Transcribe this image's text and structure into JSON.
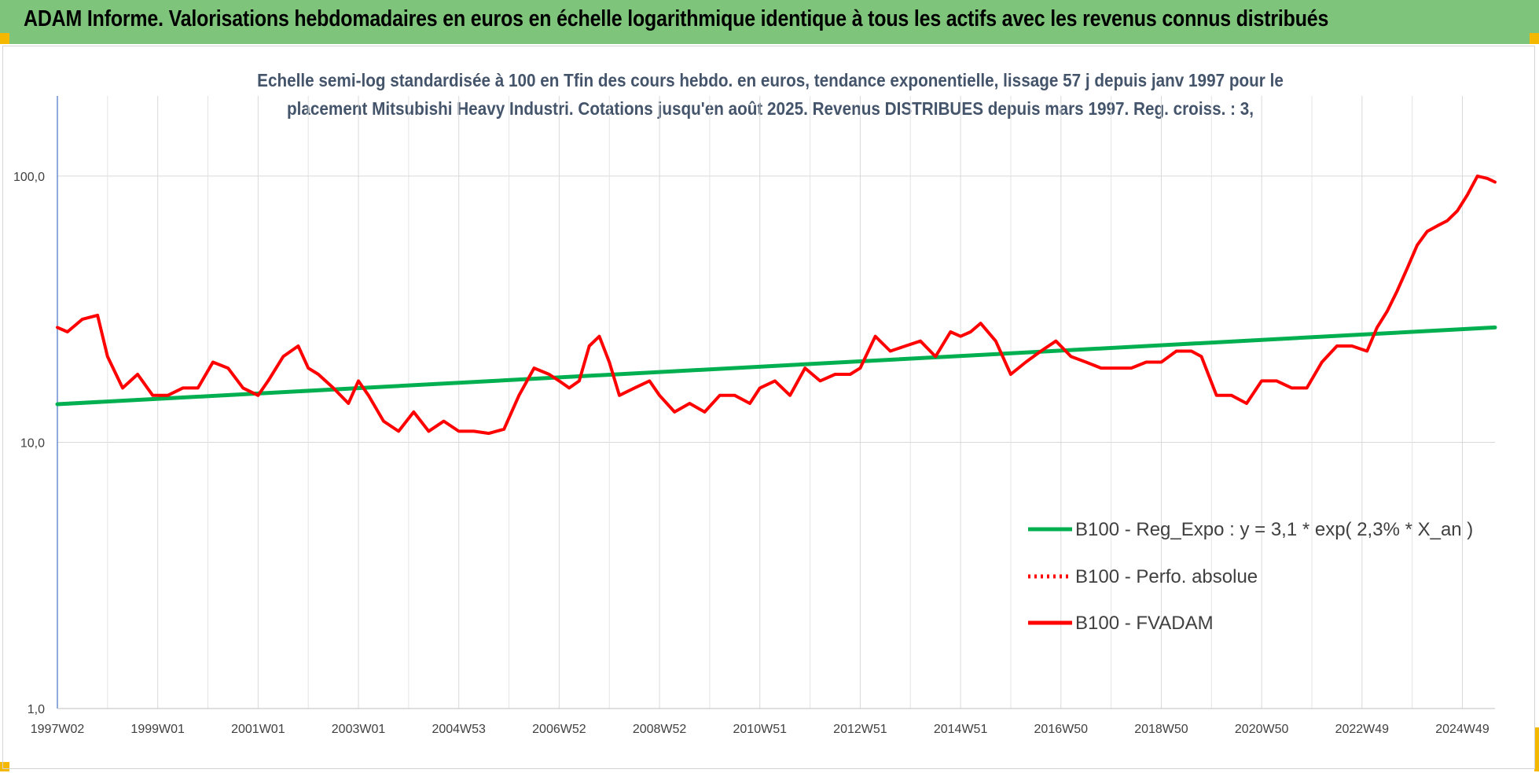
{
  "banner": {
    "title": "ADAM Informe. Valorisations hebdomadaires en euros en échelle logarithmique identique à tous les actifs avec les revenus connus distribués",
    "color": "#7ec47a"
  },
  "chart_data": {
    "type": "line",
    "subtitle_line1": "Echelle semi-log standardisée à 100 en Tfin des cours hebdo. en euros, tendance exponentielle, lissage 57 j depuis janv 1997 pour le",
    "subtitle_line2": "placement Mitsubishi Heavy Industri. Cotations jusqu'en août 2025. Revenus DISTRIBUES depuis mars 1997. Reg. croiss. : 3,",
    "y_scale": "log",
    "ylim": [
      1,
      200
    ],
    "y_ticks": [
      1,
      10,
      100
    ],
    "y_tick_labels": [
      "1,0",
      "10,0",
      "100,0"
    ],
    "x_range": [
      1997.0,
      2025.65
    ],
    "x_ticks": [
      1997.0,
      1999.0,
      2001.0,
      2003.0,
      2005.0,
      2007.0,
      2009.0,
      2011.0,
      2013.0,
      2015.0,
      2017.0,
      2019.0,
      2021.0,
      2023.0,
      2025.0
    ],
    "x_tick_labels": [
      "1997W02",
      "1999W01",
      "2001W01",
      "2003W01",
      "2004W53",
      "2006W52",
      "2008W52",
      "2010W51",
      "2012W51",
      "2014W51",
      "2016W50",
      "2018W50",
      "2020W50",
      "2022W49",
      "2024W49"
    ],
    "grid": true,
    "legend_position": "right",
    "series": [
      {
        "name": "B100 - Reg_Expo : y = 3,1 * exp( 2,3% *  X_an )",
        "color": "#00b050",
        "style": "solid",
        "x": [
          1997.0,
          2025.65
        ],
        "y": [
          13.9,
          27.0
        ]
      },
      {
        "name": "B100 - Perfo. absolue",
        "color": "#ff0000",
        "style": "dotted",
        "x": [],
        "y": []
      },
      {
        "name": "B100 - FVADAM",
        "color": "#ff0000",
        "style": "solid",
        "x": [
          1997.0,
          1997.2,
          1997.5,
          1997.8,
          1998.0,
          1998.3,
          1998.6,
          1998.9,
          1999.2,
          1999.5,
          1999.8,
          2000.1,
          2000.4,
          2000.7,
          2001.0,
          2001.2,
          2001.5,
          2001.8,
          2002.0,
          2002.2,
          2002.5,
          2002.8,
          2003.0,
          2003.2,
          2003.5,
          2003.8,
          2004.1,
          2004.4,
          2004.7,
          2005.0,
          2005.3,
          2005.6,
          2005.9,
          2006.2,
          2006.5,
          2006.8,
          2007.0,
          2007.2,
          2007.4,
          2007.6,
          2007.8,
          2008.0,
          2008.2,
          2008.5,
          2008.8,
          2009.0,
          2009.3,
          2009.6,
          2009.9,
          2010.2,
          2010.5,
          2010.8,
          2011.0,
          2011.3,
          2011.6,
          2011.9,
          2012.2,
          2012.5,
          2012.8,
          2013.0,
          2013.3,
          2013.6,
          2013.9,
          2014.2,
          2014.5,
          2014.8,
          2015.0,
          2015.2,
          2015.4,
          2015.7,
          2016.0,
          2016.3,
          2016.6,
          2016.9,
          2017.2,
          2017.5,
          2017.8,
          2018.1,
          2018.4,
          2018.7,
          2019.0,
          2019.3,
          2019.6,
          2019.8,
          2020.1,
          2020.4,
          2020.7,
          2021.0,
          2021.3,
          2021.6,
          2021.9,
          2022.2,
          2022.5,
          2022.8,
          2023.1,
          2023.3,
          2023.5,
          2023.7,
          2023.9,
          2024.1,
          2024.3,
          2024.5,
          2024.7,
          2024.9,
          2025.1,
          2025.3,
          2025.5,
          2025.65
        ],
        "y": [
          27,
          26,
          29,
          30,
          21,
          16,
          18,
          15,
          15,
          16,
          16,
          20,
          19,
          16,
          15,
          17,
          21,
          23,
          19,
          18,
          16,
          14,
          17,
          15,
          12,
          11,
          13,
          11,
          12,
          11,
          11,
          10.8,
          11.2,
          15,
          19,
          18,
          17,
          16,
          17,
          23,
          25,
          20,
          15,
          16,
          17,
          15,
          13,
          14,
          13,
          15,
          15,
          14,
          16,
          17,
          15,
          19,
          17,
          18,
          18,
          19,
          25,
          22,
          23,
          24,
          21,
          26,
          25,
          26,
          28,
          24,
          18,
          20,
          22,
          24,
          21,
          20,
          19,
          19,
          19,
          20,
          20,
          22,
          22,
          21,
          15,
          15,
          14,
          17,
          17,
          16,
          16,
          20,
          23,
          23,
          22,
          27,
          31,
          37,
          45,
          55,
          62,
          65,
          68,
          74,
          85,
          100,
          98,
          95
        ]
      }
    ]
  }
}
